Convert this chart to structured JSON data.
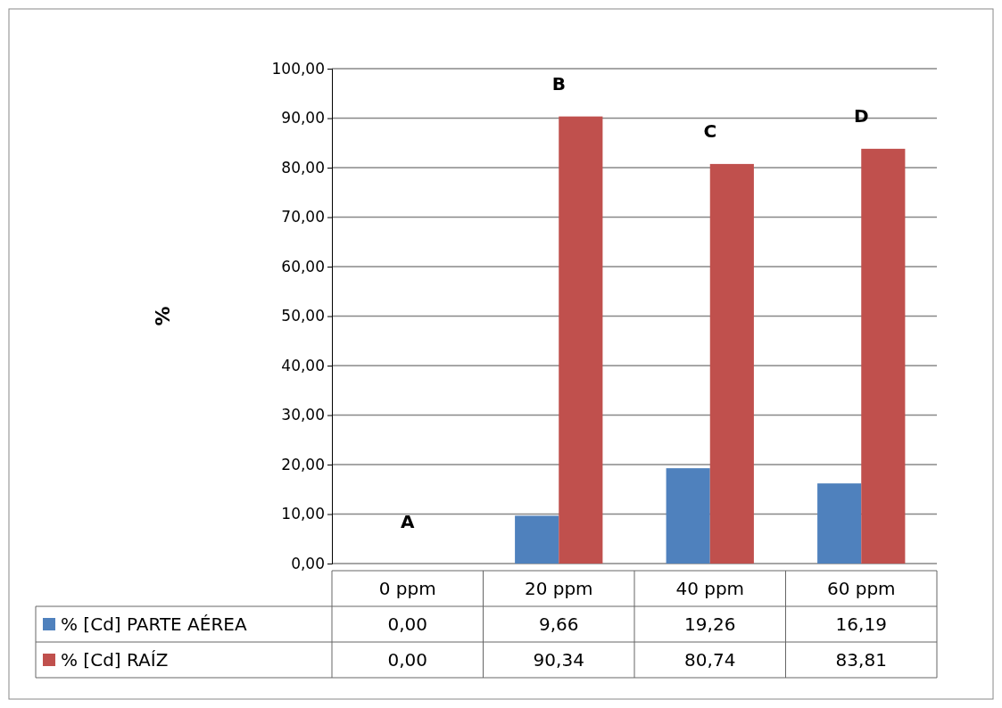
{
  "chart_data": {
    "type": "bar",
    "ylabel": "%",
    "categories": [
      "0 ppm",
      "20 ppm",
      "40 ppm",
      "60 ppm"
    ],
    "series": [
      {
        "name": "% [Cd] PARTE AÉREA",
        "color": "#4f81bd",
        "values": [
          0.0,
          9.66,
          19.26,
          16.19
        ],
        "value_labels": [
          "0,00",
          "9,66",
          "19,26",
          "16,19"
        ]
      },
      {
        "name": "% [Cd] RAÍZ",
        "color": "#c0504d",
        "values": [
          0.0,
          90.34,
          80.74,
          83.81
        ],
        "value_labels": [
          "0,00",
          "90,34",
          "80,74",
          "83,81"
        ]
      }
    ],
    "ylim": [
      0,
      100
    ],
    "yticks": [
      {
        "value": 0,
        "label": "0,00"
      },
      {
        "value": 10,
        "label": "10,00"
      },
      {
        "value": 20,
        "label": "20,00"
      },
      {
        "value": 30,
        "label": "30,00"
      },
      {
        "value": 40,
        "label": "40,00"
      },
      {
        "value": 50,
        "label": "50,00"
      },
      {
        "value": 60,
        "label": "60,00"
      },
      {
        "value": 70,
        "label": "70,00"
      },
      {
        "value": 80,
        "label": "80,00"
      },
      {
        "value": 90,
        "label": "90,00"
      },
      {
        "value": 100,
        "label": "100,00"
      }
    ],
    "grid": "y",
    "legend": "bottom",
    "annotations": [
      "A",
      "B",
      "C",
      "D"
    ]
  }
}
